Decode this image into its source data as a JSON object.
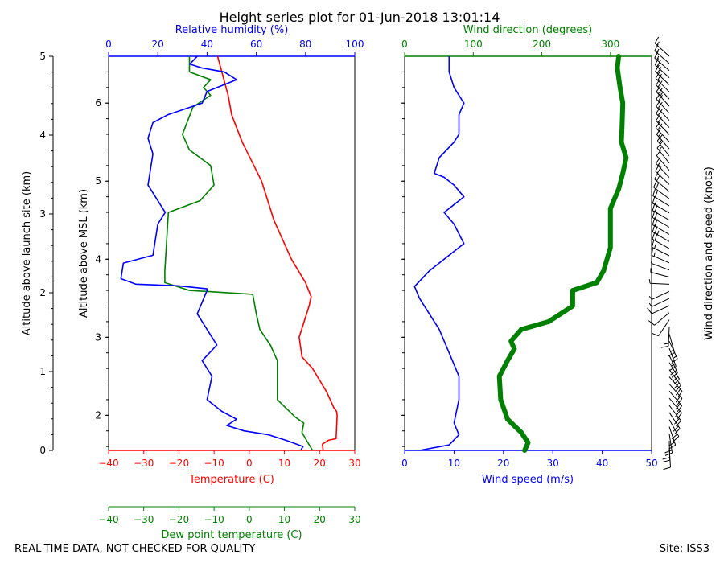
{
  "title": "Height series plot for 01-Jun-2018 13:01:14",
  "footer_left": "REAL-TIME DATA, NOT CHECKED FOR QUALITY",
  "footer_right": "Site: ISS3",
  "colors": {
    "temperature": "#ff0000",
    "dewpoint": "#008000",
    "rh": "#0000ff",
    "wind_speed": "#0000ff",
    "wind_dir": "#008000",
    "barbs": "#000000"
  },
  "chart_data": [
    {
      "type": "line",
      "name": "thermo-panel",
      "xlabel_temperature": "Temperature (C)",
      "xlabel_dewpoint": "Dew point temperature (C)",
      "xlabel_rh": "Relative humidity (%)",
      "ylabel_msl": "Altitude above MSL (km)",
      "ylabel_site": "Altitude above launch site (km)",
      "xlim_temp": [
        -40,
        30
      ],
      "xlim_rh": [
        0,
        100
      ],
      "ylim_msl": [
        1.55,
        6.6
      ],
      "ylim_site": [
        0,
        5
      ],
      "temp_ticks": [
        -40,
        -30,
        -20,
        -10,
        0,
        10,
        20,
        30
      ],
      "rh_ticks": [
        0,
        20,
        40,
        60,
        80,
        100
      ],
      "msl_tick_labels": [
        "2",
        "3",
        "4",
        "5",
        "6"
      ],
      "site_tick_labels": [
        "0",
        "1",
        "2",
        "3",
        "4",
        "5"
      ],
      "series": [
        {
          "name": "Temperature",
          "unit": "C",
          "points": [
            [
              21,
              1.55
            ],
            [
              20.8,
              1.63
            ],
            [
              22.5,
              1.68
            ],
            [
              24.7,
              1.7
            ],
            [
              25,
              2.0
            ],
            [
              24.8,
              2.05
            ],
            [
              24,
              2.1
            ],
            [
              22,
              2.3
            ],
            [
              18,
              2.6
            ],
            [
              15,
              2.75
            ],
            [
              14.2,
              3.0
            ],
            [
              17,
              3.4
            ],
            [
              17.6,
              3.52
            ],
            [
              16,
              3.7
            ],
            [
              12,
              4.0
            ],
            [
              7,
              4.5
            ],
            [
              3.5,
              5.0
            ],
            [
              -2,
              5.5
            ],
            [
              -5,
              5.85
            ],
            [
              -6,
              6.1
            ],
            [
              -9,
              6.6
            ]
          ]
        },
        {
          "name": "Dew point",
          "unit": "C",
          "points": [
            [
              18,
              1.55
            ],
            [
              16,
              1.7
            ],
            [
              15,
              1.78
            ],
            [
              15.5,
              1.9
            ],
            [
              13,
              1.98
            ],
            [
              8,
              2.2
            ],
            [
              8,
              2.7
            ],
            [
              6,
              2.9
            ],
            [
              3,
              3.1
            ],
            [
              2,
              3.3
            ],
            [
              1,
              3.55
            ],
            [
              -17,
              3.6
            ],
            [
              -24,
              3.7
            ],
            [
              -24,
              3.85
            ],
            [
              -23,
              4.6
            ],
            [
              -14,
              4.75
            ],
            [
              -10,
              4.95
            ],
            [
              -11,
              5.2
            ],
            [
              -17,
              5.4
            ],
            [
              -19,
              5.6
            ],
            [
              -16,
              5.95
            ],
            [
              -11,
              6.1
            ],
            [
              -13,
              6.2
            ],
            [
              -11,
              6.3
            ],
            [
              -17,
              6.4
            ],
            [
              -17,
              6.6
            ]
          ]
        },
        {
          "name": "Relative humidity",
          "unit": "%",
          "points": [
            [
              78,
              1.55
            ],
            [
              79,
              1.6
            ],
            [
              72,
              1.68
            ],
            [
              65,
              1.75
            ],
            [
              55,
              1.8
            ],
            [
              48,
              1.87
            ],
            [
              52,
              1.95
            ],
            [
              46,
              2.05
            ],
            [
              40,
              2.2
            ],
            [
              42,
              2.5
            ],
            [
              38,
              2.7
            ],
            [
              44,
              2.9
            ],
            [
              42,
              3.0
            ],
            [
              36,
              3.3
            ],
            [
              40,
              3.6
            ],
            [
              40,
              3.62
            ],
            [
              28,
              3.66
            ],
            [
              11,
              3.68
            ],
            [
              5,
              3.75
            ],
            [
              6,
              3.95
            ],
            [
              18,
              4.05
            ],
            [
              20,
              4.45
            ],
            [
              23,
              4.6
            ],
            [
              16,
              4.95
            ],
            [
              18,
              5.35
            ],
            [
              16,
              5.55
            ],
            [
              18,
              5.75
            ],
            [
              24,
              5.85
            ],
            [
              38,
              6.0
            ],
            [
              40,
              6.15
            ],
            [
              52,
              6.3
            ],
            [
              47,
              6.4
            ],
            [
              38,
              6.45
            ],
            [
              33,
              6.5
            ],
            [
              36,
              6.6
            ]
          ]
        }
      ]
    },
    {
      "type": "line",
      "name": "wind-panel",
      "xlabel_speed": "Wind speed (m/s)",
      "xlabel_dir": "Wind direction (degrees)",
      "ylabel_barbs": "Wind direction and speed (knots)",
      "xlim_speed": [
        0,
        50
      ],
      "xlim_dir": [
        0,
        360
      ],
      "speed_ticks": [
        0,
        10,
        20,
        30,
        40,
        50
      ],
      "dir_ticks": [
        0,
        100,
        200,
        300
      ],
      "series": [
        {
          "name": "Wind speed",
          "unit": "m/s",
          "points": [
            [
              3,
              1.55
            ],
            [
              9,
              1.62
            ],
            [
              11,
              1.75
            ],
            [
              10,
              1.9
            ],
            [
              11,
              2.2
            ],
            [
              11,
              2.5
            ],
            [
              9,
              2.8
            ],
            [
              7,
              3.1
            ],
            [
              5,
              3.3
            ],
            [
              3,
              3.5
            ],
            [
              2,
              3.65
            ],
            [
              5,
              3.85
            ],
            [
              9,
              4.05
            ],
            [
              12,
              4.2
            ],
            [
              10,
              4.45
            ],
            [
              8,
              4.6
            ],
            [
              10,
              4.7
            ],
            [
              12,
              4.8
            ],
            [
              10,
              4.95
            ],
            [
              8,
              5.05
            ],
            [
              6,
              5.1
            ],
            [
              7,
              5.3
            ],
            [
              10,
              5.5
            ],
            [
              11,
              5.6
            ],
            [
              11,
              5.85
            ],
            [
              12,
              6.0
            ],
            [
              10,
              6.2
            ],
            [
              9,
              6.4
            ],
            [
              9,
              6.6
            ]
          ]
        },
        {
          "name": "Wind direction",
          "unit": "degrees",
          "points": [
            [
              175,
              1.55
            ],
            [
              180,
              1.65
            ],
            [
              170,
              1.78
            ],
            [
              150,
              1.95
            ],
            [
              140,
              2.2
            ],
            [
              138,
              2.5
            ],
            [
              150,
              2.7
            ],
            [
              160,
              2.85
            ],
            [
              155,
              2.95
            ],
            [
              170,
              3.1
            ],
            [
              210,
              3.2
            ],
            [
              245,
              3.4
            ],
            [
              245,
              3.6
            ],
            [
              280,
              3.7
            ],
            [
              290,
              3.85
            ],
            [
              300,
              4.15
            ],
            [
              300,
              4.5
            ],
            [
              300,
              4.65
            ],
            [
              312,
              4.9
            ],
            [
              318,
              5.1
            ],
            [
              323,
              5.3
            ],
            [
              316,
              5.5
            ],
            [
              317,
              5.7
            ],
            [
              318,
              6.0
            ],
            [
              314,
              6.2
            ],
            [
              310,
              6.45
            ],
            [
              312,
              6.6
            ]
          ]
        }
      ]
    }
  ]
}
